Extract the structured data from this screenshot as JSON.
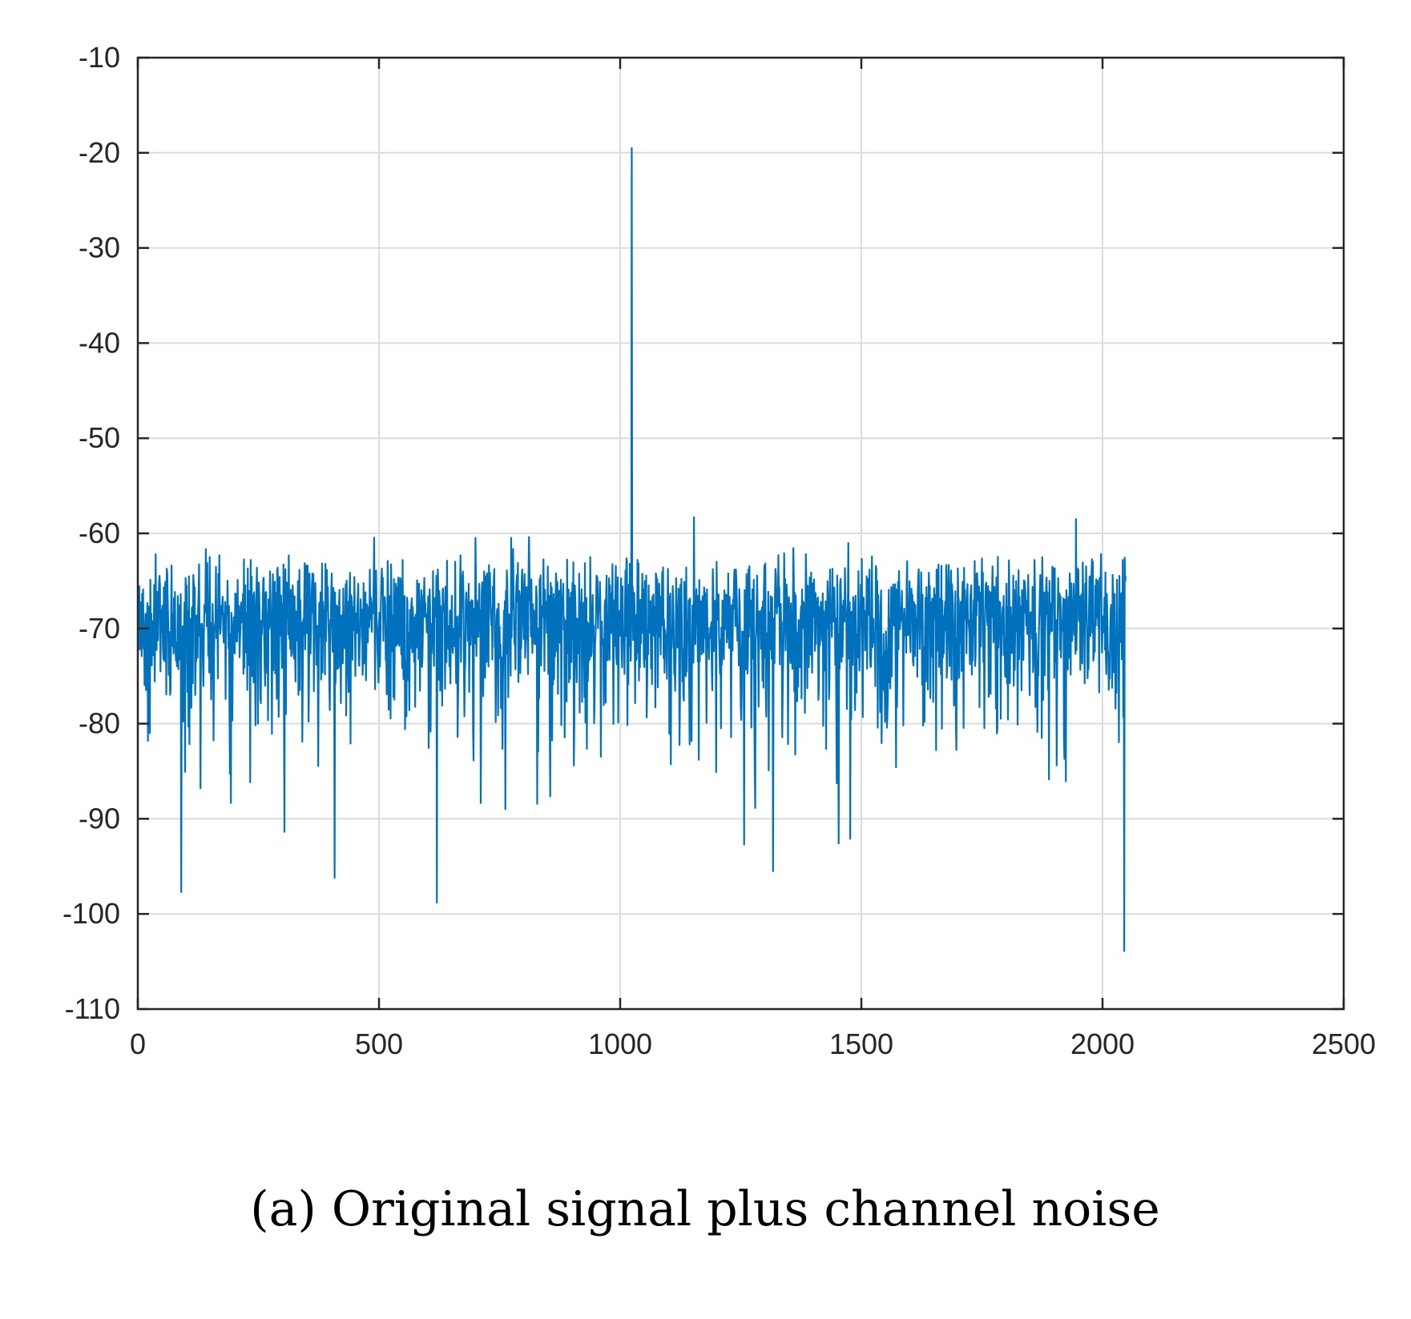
{
  "caption": "(a) Original signal plus channel noise",
  "chart_data": {
    "type": "line",
    "title": "",
    "xlabel": "",
    "ylabel": "",
    "xlim": [
      0,
      2500
    ],
    "ylim": [
      -110,
      -10
    ],
    "xticks": [
      0,
      500,
      1000,
      1500,
      2000,
      2500
    ],
    "yticks": [
      -110,
      -100,
      -90,
      -80,
      -70,
      -60,
      -50,
      -40,
      -30,
      -20,
      -10
    ],
    "xtick_labels": [
      "0",
      "500",
      "1000",
      "1500",
      "2000",
      "2500"
    ],
    "ytick_labels": [
      "-110",
      "-100",
      "-90",
      "-80",
      "-70",
      "-60",
      "-50",
      "-40",
      "-30",
      "-20",
      "-10"
    ],
    "grid": true,
    "series": [
      {
        "color": "#0072BD",
        "n_points": 2048,
        "noise_floor_mean": -71,
        "peak": {
          "x": 1024,
          "y": -19.5
        },
        "notable_points": [
          {
            "x": 90,
            "y": -97.7
          },
          {
            "x": 408,
            "y": -96.2
          },
          {
            "x": 620,
            "y": -98.8
          },
          {
            "x": 1317,
            "y": -95.5
          },
          {
            "x": 1453,
            "y": -92.6
          },
          {
            "x": 1477,
            "y": -92.1
          },
          {
            "x": 1945,
            "y": -58.5
          },
          {
            "x": 1153,
            "y": -58.3
          },
          {
            "x": 2045,
            "y": -103.9
          }
        ]
      }
    ]
  }
}
